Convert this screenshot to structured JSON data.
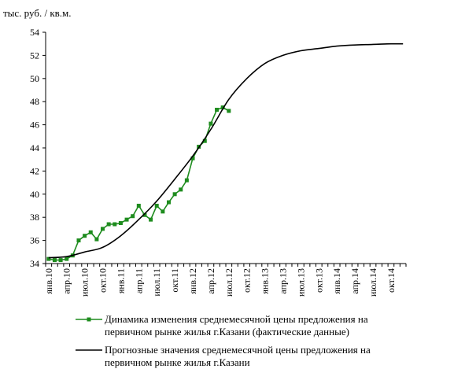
{
  "chart_data": {
    "type": "line",
    "title": "",
    "ylabel": "тыс. руб. / кв.м.",
    "xlabel": "",
    "ylim": [
      34,
      54
    ],
    "yticks": [
      34,
      36,
      38,
      40,
      42,
      44,
      46,
      48,
      50,
      52,
      54
    ],
    "grid": false,
    "legend_position": "bottom",
    "categories": [
      "янв.10",
      "апр.10",
      "июл.10",
      "окт.10",
      "янв.11",
      "апр.11",
      "июл.11",
      "окт.11",
      "янв.12",
      "апр.12",
      "июл.12",
      "окт.12",
      "янв.13",
      "апр.13",
      "июл.13",
      "окт.13",
      "янв.14",
      "апр.14",
      "июл.14",
      "окт.14"
    ],
    "series": [
      {
        "name": "Динамика изменения среднемесячной цены предложения на первичном рынке жилья г.Казани (фактические данные)",
        "color": "#1e8c1e",
        "marker": "square",
        "x": [
          0,
          1,
          2,
          3,
          4,
          5,
          6,
          7,
          8,
          9,
          10,
          11,
          12,
          13,
          14,
          15,
          16,
          17,
          18,
          19,
          20,
          21,
          22,
          23,
          24,
          25,
          26,
          27,
          28,
          29,
          30
        ],
        "values": [
          34.4,
          34.3,
          34.3,
          34.4,
          34.7,
          36.0,
          36.4,
          36.7,
          36.1,
          37.0,
          37.4,
          37.4,
          37.5,
          37.8,
          38.1,
          39.0,
          38.2,
          37.8,
          39.0,
          38.5,
          39.3,
          40.0,
          40.4,
          41.2,
          43.1,
          44.1,
          44.6,
          46.1,
          47.3,
          47.5,
          47.2
        ]
      },
      {
        "name": "Прогнозные значения среднемесячной цены предложения на первичном рынке жилья г.Казани",
        "color": "#000000",
        "marker": "none",
        "x": [
          0,
          3,
          6,
          9,
          12,
          15,
          18,
          21,
          24,
          27,
          30,
          33,
          36,
          39,
          42,
          45,
          48,
          51,
          54,
          57,
          59
        ],
        "values": [
          34.5,
          34.6,
          35.0,
          35.4,
          36.4,
          37.8,
          39.4,
          41.3,
          43.3,
          45.6,
          48.2,
          50.0,
          51.3,
          52.0,
          52.4,
          52.6,
          52.8,
          52.9,
          52.95,
          53.0,
          53.0
        ]
      }
    ]
  }
}
